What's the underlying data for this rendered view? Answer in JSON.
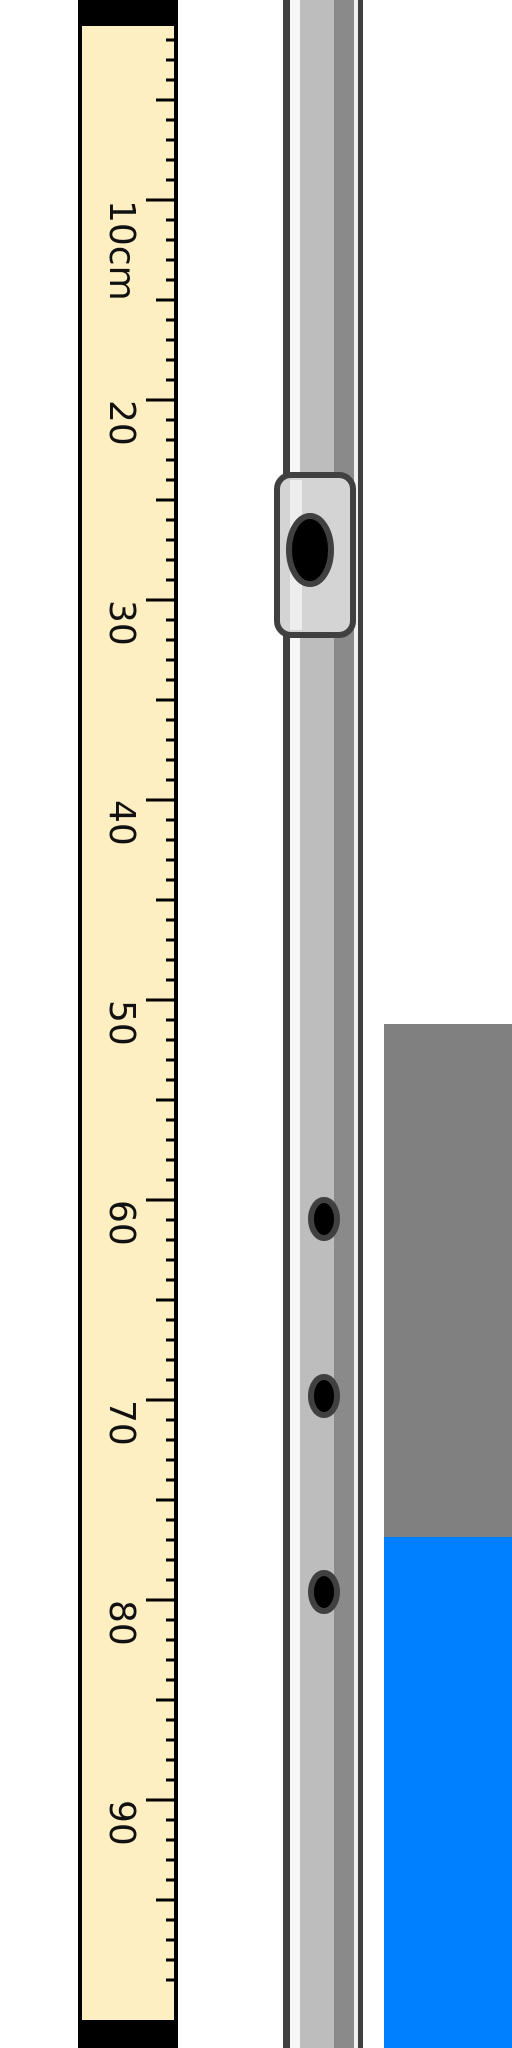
{
  "ruler": {
    "unit_label": "10cm",
    "labels": [
      "20",
      "30",
      "40",
      "50",
      "60",
      "70",
      "80",
      "90"
    ],
    "major_values": [
      10,
      20,
      30,
      40,
      50,
      60,
      70,
      80,
      90
    ],
    "max_value": 100,
    "background_color": "#fdefc2",
    "end_cap_color": "#000000"
  },
  "tube": {
    "glass_colors": [
      "#404040",
      "#f7f7f7",
      "#bdbdbd",
      "#8a8a8a"
    ],
    "clip_position_cm": 28,
    "hole_positions_cm": [
      60,
      69,
      79
    ]
  },
  "water_column": {
    "colors": {
      "air": "#808080",
      "water": "#007fff"
    },
    "air_top_cm": 52,
    "water_top_cm": 77.5
  }
}
